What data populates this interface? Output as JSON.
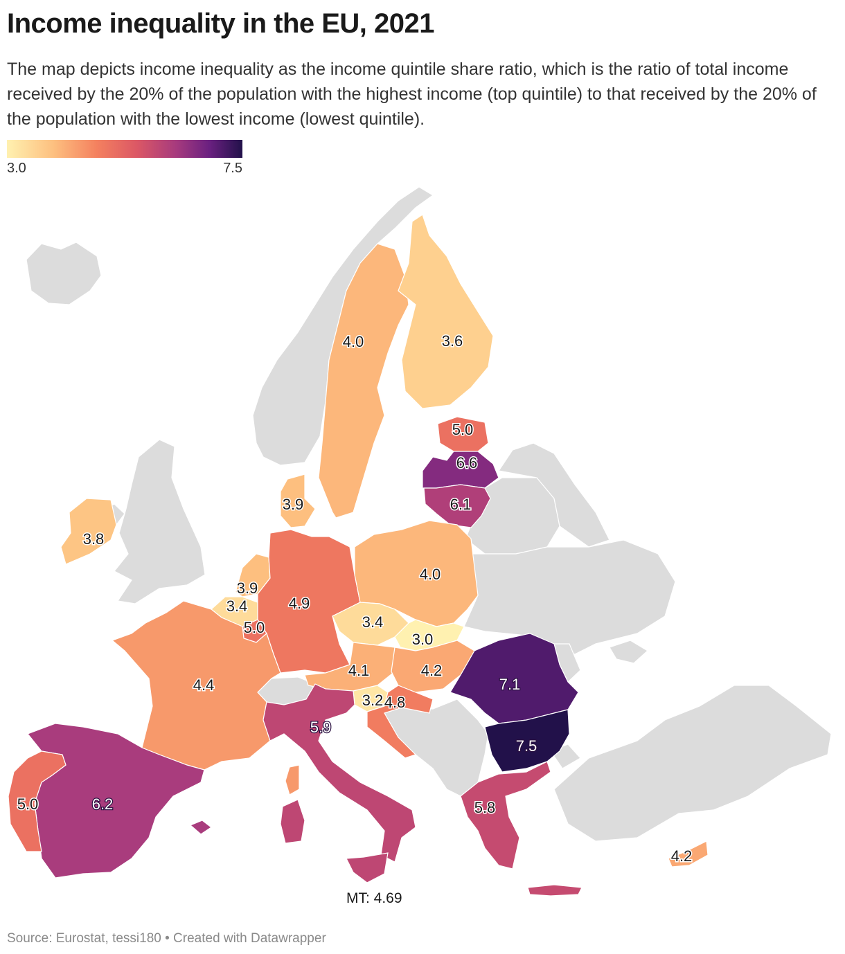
{
  "title": "Income inequality in the EU, 2021",
  "subtitle": "The map depicts income inequality as the income quintile share ratio, which is the ratio of total income received by the 20% of the population with the highest income (top quintile) to that received by the 20% of the population with the lowest income (lowest quintile).",
  "legend": {
    "min": "3.0",
    "max": "7.5",
    "min_value": 3.0,
    "max_value": 7.5
  },
  "colors": {
    "low": "#fff1b0",
    "high": "#22114a",
    "no_data": "#dcdcdc"
  },
  "regions": [
    {
      "id": "SE",
      "value": 4.0,
      "label": "4.0"
    },
    {
      "id": "FI",
      "value": 3.6,
      "label": "3.6"
    },
    {
      "id": "EE",
      "value": 5.0,
      "label": "5.0"
    },
    {
      "id": "LV",
      "value": 6.6,
      "label": "6.6"
    },
    {
      "id": "LT",
      "value": 6.1,
      "label": "6.1"
    },
    {
      "id": "DK",
      "value": 3.9,
      "label": "3.9"
    },
    {
      "id": "IE",
      "value": 3.8,
      "label": "3.8"
    },
    {
      "id": "NL",
      "value": 3.9,
      "label": "3.9"
    },
    {
      "id": "BE",
      "value": 3.4,
      "label": "3.4"
    },
    {
      "id": "LU",
      "value": 5.0,
      "label": "5.0"
    },
    {
      "id": "DE",
      "value": 4.9,
      "label": "4.9"
    },
    {
      "id": "PL",
      "value": 4.0,
      "label": "4.0"
    },
    {
      "id": "CZ",
      "value": 3.4,
      "label": "3.4"
    },
    {
      "id": "SK",
      "value": 3.0,
      "label": "3.0"
    },
    {
      "id": "FR",
      "value": 4.4,
      "label": "4.4"
    },
    {
      "id": "AT",
      "value": 4.1,
      "label": "4.1"
    },
    {
      "id": "HU",
      "value": 4.2,
      "label": "4.2"
    },
    {
      "id": "RO",
      "value": 7.1,
      "label": "7.1"
    },
    {
      "id": "SI",
      "value": 3.2,
      "label": "3.2"
    },
    {
      "id": "HR",
      "value": 4.8,
      "label": "4.8"
    },
    {
      "id": "IT",
      "value": 5.9,
      "label": "5.9"
    },
    {
      "id": "BG",
      "value": 7.5,
      "label": "7.5"
    },
    {
      "id": "ES",
      "value": 6.2,
      "label": "6.2"
    },
    {
      "id": "PT",
      "value": 5.0,
      "label": "5.0"
    },
    {
      "id": "GR",
      "value": 5.8,
      "label": "5.8"
    },
    {
      "id": "CY",
      "value": 4.2,
      "label": "4.2"
    }
  ],
  "note": "MT: 4.69",
  "source": "Source: Eurostat, tessi180 • Created with Datawrapper"
}
